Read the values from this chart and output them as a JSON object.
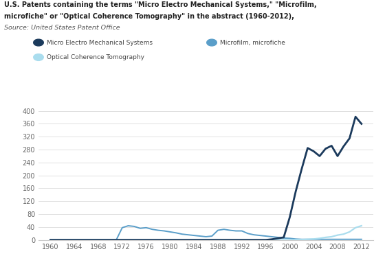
{
  "title_line1": "U.S. Patents containing the terms \"Micro Electro Mechanical Systems,\" \"Microfilm,",
  "title_line2": "microfiche\" or \"Optical Coherence Tomography\" in the abstract (1960-2012),",
  "title_line3": "Source: United States Patent Office",
  "legend": [
    "Micro Electro Mechanical Systems",
    "Microfilm, microfiche",
    "Optical Coherence Tomography"
  ],
  "colors": {
    "mems": "#1b3a5c",
    "microfilm": "#5a9ec9",
    "oct": "#aaddee"
  },
  "years_mems": [
    1960,
    1961,
    1962,
    1963,
    1964,
    1965,
    1966,
    1967,
    1968,
    1969,
    1970,
    1971,
    1972,
    1973,
    1974,
    1975,
    1976,
    1977,
    1978,
    1979,
    1980,
    1981,
    1982,
    1983,
    1984,
    1985,
    1986,
    1987,
    1988,
    1989,
    1990,
    1991,
    1992,
    1993,
    1994,
    1995,
    1996,
    1997,
    1998,
    1999,
    2000,
    2001,
    2002,
    2003,
    2004,
    2005,
    2006,
    2007,
    2008,
    2009,
    2010,
    2011,
    2012
  ],
  "values_mems": [
    0,
    0,
    0,
    0,
    0,
    0,
    0,
    0,
    0,
    0,
    0,
    0,
    0,
    0,
    0,
    0,
    0,
    0,
    0,
    0,
    0,
    0,
    0,
    0,
    0,
    0,
    0,
    0,
    0,
    0,
    0,
    0,
    0,
    0,
    0,
    0,
    0,
    2,
    5,
    8,
    70,
    150,
    220,
    285,
    275,
    260,
    283,
    292,
    260,
    290,
    315,
    382,
    360
  ],
  "years_microfilm": [
    1960,
    1961,
    1962,
    1963,
    1964,
    1965,
    1966,
    1967,
    1968,
    1969,
    1970,
    1971,
    1972,
    1973,
    1974,
    1975,
    1976,
    1977,
    1978,
    1979,
    1980,
    1981,
    1982,
    1983,
    1984,
    1985,
    1986,
    1987,
    1988,
    1989,
    1990,
    1991,
    1992,
    1993,
    1994,
    1995,
    1996,
    1997,
    1998,
    1999,
    2000,
    2001,
    2002,
    2003,
    2004,
    2005,
    2006,
    2007,
    2008,
    2009,
    2010,
    2011,
    2012
  ],
  "values_microfilm": [
    0,
    0,
    0,
    0,
    0,
    0,
    0,
    0,
    0,
    0,
    0,
    0,
    38,
    44,
    42,
    36,
    38,
    33,
    30,
    28,
    25,
    22,
    18,
    16,
    14,
    12,
    10,
    12,
    30,
    33,
    30,
    28,
    28,
    20,
    16,
    14,
    12,
    10,
    8,
    6,
    5,
    3,
    2,
    2,
    2,
    2,
    2,
    2,
    2,
    2,
    2,
    2,
    2
  ],
  "years_oct": [
    1960,
    1961,
    1962,
    1963,
    1964,
    1965,
    1966,
    1967,
    1968,
    1969,
    1970,
    1971,
    1972,
    1973,
    1974,
    1975,
    1976,
    1977,
    1978,
    1979,
    1980,
    1981,
    1982,
    1983,
    1984,
    1985,
    1986,
    1987,
    1988,
    1989,
    1990,
    1991,
    1992,
    1993,
    1994,
    1995,
    1996,
    1997,
    1998,
    1999,
    2000,
    2001,
    2002,
    2003,
    2004,
    2005,
    2006,
    2007,
    2008,
    2009,
    2010,
    2011,
    2012
  ],
  "values_oct": [
    0,
    0,
    0,
    0,
    0,
    0,
    0,
    0,
    0,
    0,
    0,
    0,
    0,
    0,
    0,
    0,
    0,
    0,
    0,
    0,
    0,
    0,
    0,
    0,
    0,
    0,
    0,
    0,
    0,
    0,
    0,
    0,
    0,
    0,
    0,
    0,
    0,
    0,
    0,
    0,
    0,
    1,
    1,
    2,
    3,
    5,
    8,
    10,
    15,
    18,
    25,
    38,
    44
  ],
  "ylim": [
    0,
    400
  ],
  "yticks": [
    0,
    40,
    80,
    120,
    160,
    200,
    240,
    280,
    320,
    360,
    400
  ],
  "xticks": [
    1960,
    1964,
    1968,
    1972,
    1976,
    1980,
    1984,
    1988,
    1992,
    1996,
    2000,
    2004,
    2008,
    2012
  ],
  "xlim": [
    1958,
    2014
  ],
  "background_color": "#ffffff",
  "grid_color": "#e0e0e0"
}
